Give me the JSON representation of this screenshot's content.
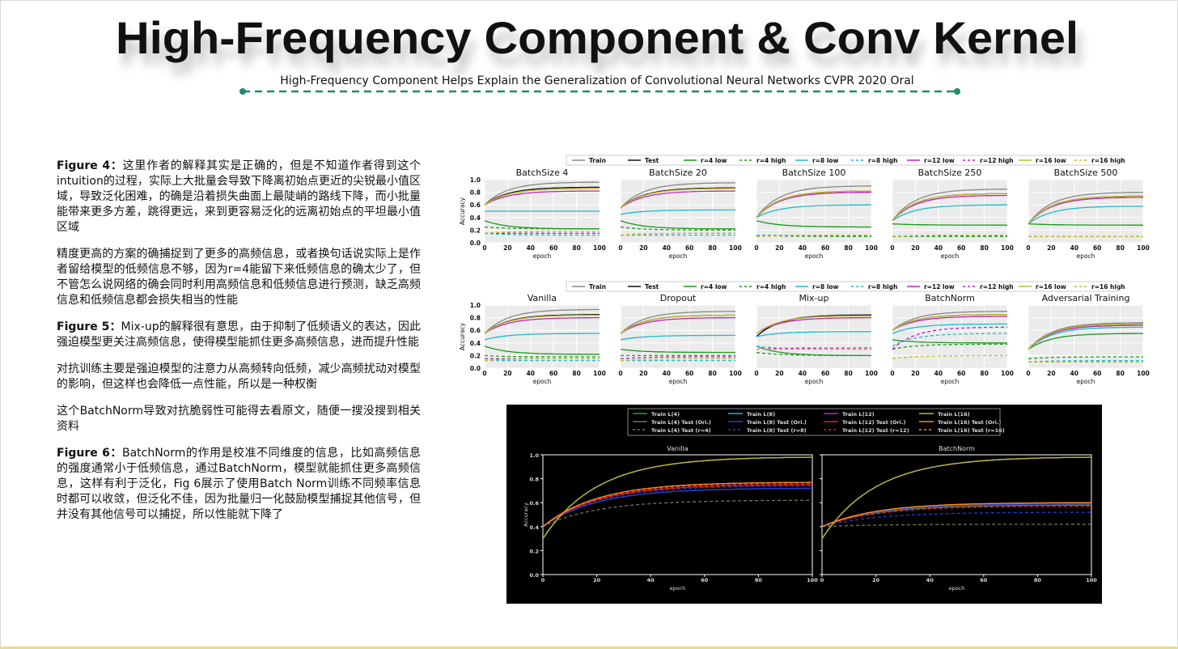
{
  "header": {
    "title": "High-Frequency Component & Conv Kernel",
    "subtitle": "High-Frequency Component Helps Explain the Generalization of Convolutional Neural Networks CVPR 2020 Oral"
  },
  "notes": [
    [
      {
        "label": "Figure 4：",
        "text": "这里作者的解释其实是正确的，但是不知道作者得到这个intuition的过程，实际上大批量会导致下降离初始点更近的尖锐最小值区域，导致泛化困难，的确是沿着损失曲面上最陡峭的路线下降，而小批量能带来更多方差，跳得更远，来到更容易泛化的远离初始点的平坦最小值区域"
      },
      {
        "text": "精度更高的方案的确捕捉到了更多的高频信息，或者换句话说实际上是作者留给模型的低频信息不够，因为r=4能留下来低频信息的确太少了，但不管怎么说网络的确会同时利用高频信息和低频信息进行预测，缺乏高频信息和低频信息都会损失相当的性能"
      }
    ],
    [
      {
        "label": "Figure 5：",
        "text": "Mix-up的解释很有意思，由于抑制了低频语义的表达，因此强迫模型更关注高频信息，使得模型能抓住更多高频信息，进而提升性能"
      },
      {
        "text": "对抗训练主要是强迫模型的注意力从高频转向低频，减少高频扰动对模型的影响，但这样也会降低一点性能，所以是一种权衡"
      },
      {
        "text": "这个BatchNorm导致对抗脆弱性可能得去看原文，随便一搜没搜到相关资料"
      }
    ],
    [
      {
        "label": "Figure 6：",
        "text": "BatchNorm的作用是校准不同维度的信息，比如高频信息的强度通常小于低频信息，通过BatchNorm，模型就能抓住更多高频信息，这样有利于泛化，Fig 6展示了使用Batch Norm训练不同频率信息时都可以收敛，但泛化不佳，因为批量归一化鼓励模型捕捉其他信号，但并没有其他信号可以捕捉，所以性能就下降了"
      }
    ]
  ],
  "figure4": {
    "xlabel": "epoch",
    "ylabel": "Accuracy",
    "xlim": [
      0,
      100
    ],
    "ylim": [
      0,
      1
    ],
    "xticks": [
      0,
      20,
      40,
      60,
      80,
      100
    ],
    "yticks": [
      {
        "value": 0,
        "label": "0.0"
      },
      0.2,
      0.4,
      0.6,
      0.8,
      {
        "value": 1,
        "label": "1.0"
      }
    ],
    "series": [
      {
        "name": "Train",
        "color": "#888888",
        "dash": false
      },
      {
        "name": "Test",
        "color": "#111111",
        "dash": false
      },
      {
        "name": "r=4 low",
        "color": "#1a9a1a",
        "dash": false
      },
      {
        "name": "r=4 high",
        "color": "#1a9a1a",
        "dash": true
      },
      {
        "name": "r=8 low",
        "color": "#17becf",
        "dash": false
      },
      {
        "name": "r=8 high",
        "color": "#17becf",
        "dash": true
      },
      {
        "name": "r=12 low",
        "color": "#c71fc7",
        "dash": false
      },
      {
        "name": "r=12 high",
        "color": "#c71fc7",
        "dash": true
      },
      {
        "name": "r=16 low",
        "color": "#bcbd22",
        "dash": false
      },
      {
        "name": "r=16 high",
        "color": "#bcbd22",
        "dash": true
      }
    ],
    "panels": [
      {
        "title": "BatchSize 4",
        "curves": [
          [
            0.6,
            0.96
          ],
          [
            0.6,
            0.88
          ],
          [
            0.35,
            0.22
          ],
          [
            0.25,
            0.22
          ],
          [
            0.5,
            0.5
          ],
          [
            0.15,
            0.12
          ],
          [
            0.6,
            0.82
          ],
          [
            0.15,
            0.15
          ],
          [
            0.6,
            0.86
          ],
          [
            0.15,
            0.18
          ]
        ]
      },
      {
        "title": "BatchSize 20",
        "curves": [
          [
            0.55,
            0.95
          ],
          [
            0.55,
            0.87
          ],
          [
            0.35,
            0.22
          ],
          [
            0.25,
            0.2
          ],
          [
            0.45,
            0.52
          ],
          [
            0.12,
            0.12
          ],
          [
            0.55,
            0.82
          ],
          [
            0.12,
            0.15
          ],
          [
            0.55,
            0.86
          ],
          [
            0.12,
            0.15
          ]
        ]
      },
      {
        "title": "BatchSize 100",
        "curves": [
          [
            0.4,
            0.9
          ],
          [
            0.4,
            0.82
          ],
          [
            0.35,
            0.25
          ],
          [
            0.12,
            0.1
          ],
          [
            0.4,
            0.6
          ],
          [
            0.12,
            0.12
          ],
          [
            0.4,
            0.8
          ],
          [
            0.1,
            0.12
          ],
          [
            0.4,
            0.82
          ],
          [
            0.1,
            0.12
          ]
        ]
      },
      {
        "title": "BatchSize 250",
        "curves": [
          [
            0.35,
            0.85
          ],
          [
            0.35,
            0.78
          ],
          [
            0.3,
            0.28
          ],
          [
            0.1,
            0.1
          ],
          [
            0.35,
            0.6
          ],
          [
            0.1,
            0.12
          ],
          [
            0.35,
            0.75
          ],
          [
            0.1,
            0.12
          ],
          [
            0.35,
            0.78
          ],
          [
            0.1,
            0.12
          ]
        ]
      },
      {
        "title": "BatchSize 500",
        "curves": [
          [
            0.3,
            0.8
          ],
          [
            0.3,
            0.74
          ],
          [
            0.3,
            0.28
          ],
          [
            0.1,
            0.1
          ],
          [
            0.3,
            0.58
          ],
          [
            0.1,
            0.1
          ],
          [
            0.3,
            0.72
          ],
          [
            0.1,
            0.1
          ],
          [
            0.3,
            0.74
          ],
          [
            0.1,
            0.1
          ]
        ]
      }
    ]
  },
  "figure5": {
    "xlabel": "epoch",
    "ylabel": "Accuracy",
    "xlim": [
      0,
      100
    ],
    "ylim": [
      0,
      1
    ],
    "xticks": [
      0,
      20,
      40,
      60,
      80,
      100
    ],
    "yticks": [
      {
        "value": 0,
        "label": "0.0"
      },
      0.2,
      0.4,
      0.6,
      0.8,
      {
        "value": 1,
        "label": "1.0"
      }
    ],
    "series": [
      {
        "name": "Train",
        "color": "#888888",
        "dash": false
      },
      {
        "name": "Test",
        "color": "#111111",
        "dash": false
      },
      {
        "name": "r=4 low",
        "color": "#1a9a1a",
        "dash": false
      },
      {
        "name": "r=4 high",
        "color": "#1a9a1a",
        "dash": true
      },
      {
        "name": "r=8 low",
        "color": "#17becf",
        "dash": false
      },
      {
        "name": "r=8 high",
        "color": "#17becf",
        "dash": true
      },
      {
        "name": "r=12 low",
        "color": "#c71fc7",
        "dash": false
      },
      {
        "name": "r=12 high",
        "color": "#c71fc7",
        "dash": true
      },
      {
        "name": "r=16 low",
        "color": "#bcbd22",
        "dash": false
      },
      {
        "name": "r=16 high",
        "color": "#bcbd22",
        "dash": true
      }
    ],
    "panels": [
      {
        "title": "Vanilla",
        "curves": [
          [
            0.55,
            0.93
          ],
          [
            0.55,
            0.85
          ],
          [
            0.35,
            0.22
          ],
          [
            0.2,
            0.18
          ],
          [
            0.45,
            0.55
          ],
          [
            0.12,
            0.12
          ],
          [
            0.55,
            0.8
          ],
          [
            0.15,
            0.15
          ],
          [
            0.55,
            0.84
          ],
          [
            0.12,
            0.15
          ]
        ]
      },
      {
        "title": "Dropout",
        "curves": [
          [
            0.55,
            0.9
          ],
          [
            0.55,
            0.84
          ],
          [
            0.3,
            0.25
          ],
          [
            0.2,
            0.2
          ],
          [
            0.45,
            0.52
          ],
          [
            0.12,
            0.12
          ],
          [
            0.55,
            0.8
          ],
          [
            0.15,
            0.18
          ],
          [
            0.55,
            0.84
          ],
          [
            0.12,
            0.15
          ]
        ]
      },
      {
        "title": "Mix-up",
        "curves": [
          [
            0.5,
            0.85
          ],
          [
            0.5,
            0.84
          ],
          [
            0.35,
            0.2
          ],
          [
            0.25,
            0.2
          ],
          [
            0.5,
            0.58
          ],
          [
            0.35,
            0.3
          ],
          [
            0.55,
            0.8
          ],
          [
            0.3,
            0.32
          ],
          [
            0.55,
            0.83
          ],
          [
            0.3,
            0.3
          ]
        ]
      },
      {
        "title": "BatchNorm",
        "curves": [
          [
            0.6,
            0.9
          ],
          [
            0.6,
            0.85
          ],
          [
            0.45,
            0.4
          ],
          [
            0.3,
            0.38
          ],
          [
            0.55,
            0.7
          ],
          [
            0.35,
            0.55
          ],
          [
            0.6,
            0.82
          ],
          [
            0.3,
            0.65
          ],
          [
            0.6,
            0.85
          ],
          [
            0.15,
            0.2
          ]
        ]
      },
      {
        "title": "Adversarial Training",
        "curves": [
          [
            0.3,
            0.72
          ],
          [
            0.3,
            0.7
          ],
          [
            0.3,
            0.55
          ],
          [
            0.15,
            0.18
          ],
          [
            0.3,
            0.65
          ],
          [
            0.1,
            0.12
          ],
          [
            0.3,
            0.68
          ],
          [
            0.1,
            0.1
          ],
          [
            0.3,
            0.7
          ],
          [
            0.1,
            0.1
          ]
        ]
      }
    ]
  },
  "figure6": {
    "xlabel": "epoch",
    "ylabel": "Accuracy",
    "xlim": [
      0,
      100
    ],
    "ylim": [
      0,
      1
    ],
    "xticks": [
      0,
      20,
      40,
      60,
      80,
      100
    ],
    "yticks": [
      {
        "value": 0,
        "label": "0.0"
      },
      0.2,
      0.4,
      0.6,
      0.8,
      {
        "value": 1,
        "label": "1.0"
      }
    ],
    "series": [
      {
        "name": "Train L(4)",
        "color": "#2ca02c",
        "dash": false
      },
      {
        "name": "Train L(4) Test (Ori.)",
        "color": "#6b7d4a",
        "dash": false
      },
      {
        "name": "Train L(4) Test (r=4)",
        "color": "#6b7d4a",
        "dash": true
      },
      {
        "name": "Train L(8)",
        "color": "#17becf",
        "dash": false
      },
      {
        "name": "Train L(8) Test (Ori.)",
        "color": "#1f3fd0",
        "dash": false
      },
      {
        "name": "Train L(8) Test (r=8)",
        "color": "#1f3fd0",
        "dash": true
      },
      {
        "name": "Train L(12)",
        "color": "#c71fc7",
        "dash": false
      },
      {
        "name": "Train L(12) Test (Ori.)",
        "color": "#e02020",
        "dash": false
      },
      {
        "name": "Train L(12) Test (r=12)",
        "color": "#e02020",
        "dash": true
      },
      {
        "name": "Train L(16)",
        "color": "#bcbd22",
        "dash": false
      },
      {
        "name": "Train L(16) Test (Ori.)",
        "color": "#ff8c1a",
        "dash": false
      },
      {
        "name": "Train L(16) Test (r=16)",
        "color": "#ff8c1a",
        "dash": true
      }
    ],
    "panels": [
      {
        "title": "Vanilla",
        "curves": [
          [
            0.3,
            0.98
          ],
          [
            0.4,
            0.72
          ],
          [
            0.4,
            0.62
          ],
          [
            0.3,
            0.98
          ],
          [
            0.4,
            0.72
          ],
          [
            0.4,
            0.74
          ],
          [
            0.3,
            0.98
          ],
          [
            0.4,
            0.75
          ],
          [
            0.4,
            0.76
          ],
          [
            0.3,
            0.98
          ],
          [
            0.4,
            0.77
          ],
          [
            0.4,
            0.77
          ]
        ]
      },
      {
        "title": "BatchNorm",
        "curves": [
          [
            0.3,
            0.98
          ],
          [
            0.4,
            0.58
          ],
          [
            0.4,
            0.42
          ],
          [
            0.3,
            0.98
          ],
          [
            0.4,
            0.59
          ],
          [
            0.4,
            0.52
          ],
          [
            0.3,
            0.98
          ],
          [
            0.4,
            0.6
          ],
          [
            0.4,
            0.57
          ],
          [
            0.3,
            0.98
          ],
          [
            0.4,
            0.6
          ],
          [
            0.4,
            0.6
          ]
        ]
      }
    ]
  }
}
